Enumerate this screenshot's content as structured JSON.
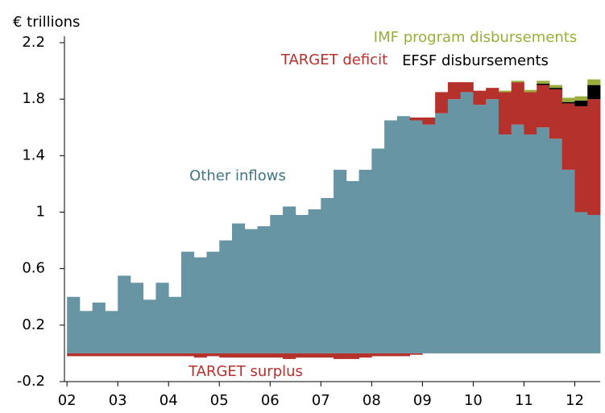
{
  "chart_data": {
    "type": "stacked-bar",
    "ylabel": "€ trillions",
    "x": [
      2002,
      2002.25,
      2002.5,
      2002.75,
      2003,
      2003.25,
      2003.5,
      2003.75,
      2004,
      2004.25,
      2004.5,
      2004.75,
      2005,
      2005.25,
      2005.5,
      2005.75,
      2006,
      2006.25,
      2006.5,
      2006.75,
      2007,
      2007.25,
      2007.5,
      2007.75,
      2008,
      2008.25,
      2008.5,
      2008.75,
      2009,
      2009.25,
      2009.5,
      2009.75,
      2010,
      2010.25,
      2010.5,
      2010.75,
      2011,
      2011.25,
      2011.5,
      2011.75,
      2012,
      2012.25
    ],
    "series": [
      {
        "name": "Other inflows",
        "color": "#6895a3",
        "values": [
          0.4,
          0.3,
          0.36,
          0.3,
          0.55,
          0.5,
          0.38,
          0.5,
          0.4,
          0.72,
          0.68,
          0.72,
          0.8,
          0.92,
          0.88,
          0.9,
          0.98,
          1.04,
          0.98,
          1.02,
          1.1,
          1.3,
          1.22,
          1.3,
          1.45,
          1.65,
          1.68,
          1.65,
          1.62,
          1.7,
          1.8,
          1.85,
          1.76,
          1.8,
          1.55,
          1.62,
          1.55,
          1.6,
          1.52,
          1.3,
          1.0,
          0.98
        ]
      },
      {
        "name": "TARGET deficit",
        "color": "#b5312c",
        "values": [
          0,
          0,
          0,
          0,
          0,
          0,
          0,
          0,
          0,
          0,
          0,
          0,
          0,
          0,
          0,
          0,
          0,
          0,
          0,
          0,
          0,
          0,
          0,
          0,
          0,
          0,
          0,
          0.02,
          0.05,
          0.15,
          0.12,
          0.07,
          0.1,
          0.08,
          0.3,
          0.3,
          0.3,
          0.3,
          0.35,
          0.47,
          0.75,
          0.82
        ]
      },
      {
        "name": "EFSF disbursements",
        "color": "#000000",
        "values": [
          0,
          0,
          0,
          0,
          0,
          0,
          0,
          0,
          0,
          0,
          0,
          0,
          0,
          0,
          0,
          0,
          0,
          0,
          0,
          0,
          0,
          0,
          0,
          0,
          0,
          0,
          0,
          0,
          0,
          0,
          0,
          0,
          0,
          0,
          0,
          0,
          0,
          0.01,
          0.01,
          0.01,
          0.04,
          0.1
        ]
      },
      {
        "name": "IMF program disbursements",
        "color": "#9aad3a",
        "values": [
          0,
          0,
          0,
          0,
          0,
          0,
          0,
          0,
          0,
          0,
          0,
          0,
          0,
          0,
          0,
          0,
          0,
          0,
          0,
          0,
          0,
          0,
          0,
          0,
          0,
          0,
          0,
          0,
          0,
          0,
          0,
          0,
          0,
          0,
          0.01,
          0.01,
          0.015,
          0.02,
          0.02,
          0.03,
          0.03,
          0.04
        ]
      },
      {
        "name": "TARGET surplus",
        "color": "#b5312c",
        "values": [
          -0.02,
          -0.02,
          -0.02,
          -0.02,
          -0.02,
          -0.02,
          -0.02,
          -0.02,
          -0.02,
          -0.02,
          -0.03,
          -0.02,
          -0.03,
          -0.03,
          -0.03,
          -0.03,
          -0.03,
          -0.04,
          -0.03,
          -0.03,
          -0.03,
          -0.04,
          -0.04,
          -0.03,
          -0.02,
          -0.02,
          -0.02,
          -0.01,
          0,
          0,
          0,
          0,
          0,
          0,
          0,
          0,
          0,
          0,
          0,
          0,
          0,
          0
        ]
      }
    ],
    "xlim": [
      2001.95,
      2012.5
    ],
    "xticks": [
      {
        "value": 2002,
        "label": "02"
      },
      {
        "value": 2003,
        "label": "03"
      },
      {
        "value": 2004,
        "label": "04"
      },
      {
        "value": 2005,
        "label": "05"
      },
      {
        "value": 2006,
        "label": "06"
      },
      {
        "value": 2007,
        "label": "07"
      },
      {
        "value": 2008,
        "label": "08"
      },
      {
        "value": 2009,
        "label": "09"
      },
      {
        "value": 2010,
        "label": "10"
      },
      {
        "value": 2011,
        "label": "11"
      },
      {
        "value": 2012,
        "label": "12"
      }
    ],
    "ylim": [
      -0.2,
      2.2
    ],
    "yticks": [
      -0.2,
      0.2,
      0.6,
      1.0,
      1.4,
      1.8,
      2.2
    ]
  }
}
